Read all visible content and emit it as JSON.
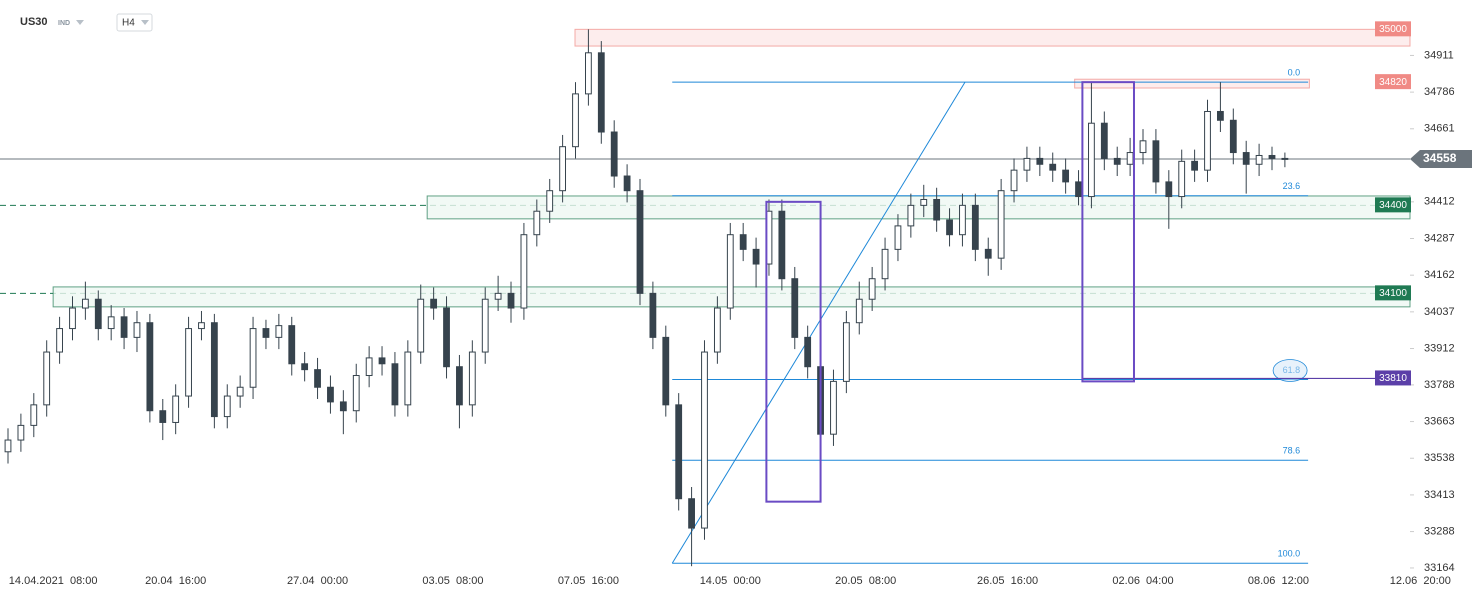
{
  "header": {
    "symbol": "US30",
    "market": "IND",
    "timeframe": "H4"
  },
  "chart_data": {
    "type": "candlestick",
    "color": "#36434d",
    "candles": {
      "open": [
        33560,
        33600,
        33650,
        33720,
        33900,
        33980,
        34050,
        34080,
        33980,
        34020,
        33950,
        34000,
        33700,
        33660,
        33750,
        33980,
        34000,
        33680,
        33750,
        33780,
        33980,
        33950,
        33990,
        33860,
        33840,
        33780,
        33730,
        33700,
        33820,
        33880,
        33860,
        33720,
        33900,
        34080,
        34050,
        33850,
        33720,
        33900,
        34080,
        34100,
        34050,
        34300,
        34380,
        34450,
        34600,
        34780,
        34920,
        34650,
        34500,
        34450,
        34100,
        33950,
        33720,
        33400,
        33300,
        33900,
        34050,
        34300,
        34250,
        34200,
        34380,
        34150,
        33950,
        33850,
        33620,
        33800,
        34000,
        34080,
        34150,
        34250,
        34330,
        34400,
        34420,
        34350,
        34300,
        34400,
        34250,
        34220,
        34450,
        34520,
        34560,
        34540,
        34520,
        34480,
        34430,
        34680,
        34560,
        34540,
        34580,
        34620,
        34480,
        34430,
        34550,
        34520,
        34720,
        34690,
        34580,
        34540,
        34570,
        34560
      ],
      "high": [
        33640,
        33690,
        33760,
        33940,
        34020,
        34090,
        34140,
        34110,
        34060,
        34050,
        34040,
        34030,
        33740,
        33790,
        34020,
        34040,
        34030,
        33790,
        33820,
        34020,
        34010,
        34030,
        34020,
        33900,
        33880,
        33820,
        33770,
        33860,
        33920,
        33920,
        33900,
        33940,
        34130,
        34120,
        34090,
        33890,
        33940,
        34120,
        34160,
        34140,
        34340,
        34420,
        34490,
        34640,
        34820,
        35000,
        34960,
        34690,
        34540,
        34490,
        34140,
        33990,
        33760,
        33440,
        33940,
        34090,
        34340,
        34340,
        34290,
        34420,
        34420,
        34190,
        33990,
        33890,
        33840,
        34040,
        34140,
        34190,
        34290,
        34370,
        34440,
        34470,
        34460,
        34390,
        34440,
        34440,
        34290,
        34490,
        34560,
        34600,
        34600,
        34580,
        34560,
        34520,
        34820,
        34720,
        34600,
        34630,
        34660,
        34660,
        34520,
        34590,
        34590,
        34760,
        34820,
        34730,
        34620,
        34610,
        34600,
        34580
      ],
      "low": [
        33520,
        33560,
        33610,
        33680,
        33860,
        33940,
        34010,
        33940,
        33940,
        33910,
        33900,
        33660,
        33600,
        33620,
        33710,
        33940,
        33640,
        33640,
        33710,
        33740,
        33910,
        33910,
        33820,
        33800,
        33740,
        33690,
        33620,
        33660,
        33780,
        33820,
        33680,
        33680,
        33860,
        34010,
        33810,
        33640,
        33680,
        33860,
        34040,
        34000,
        34010,
        34260,
        34340,
        34410,
        34560,
        34740,
        34610,
        34460,
        34410,
        34060,
        33910,
        33680,
        33360,
        33170,
        33260,
        33860,
        34010,
        34210,
        34120,
        34160,
        34110,
        33910,
        33810,
        33540,
        33580,
        33760,
        33960,
        34040,
        34110,
        34210,
        34290,
        34360,
        34310,
        34260,
        34260,
        34210,
        34160,
        34180,
        34410,
        34480,
        34500,
        34480,
        34440,
        34400,
        34390,
        34520,
        34500,
        34500,
        34540,
        34440,
        34320,
        34390,
        34480,
        34480,
        34650,
        34540,
        34440,
        34500,
        34520,
        34530
      ],
      "close": [
        33600,
        33650,
        33720,
        33900,
        33980,
        34050,
        34080,
        33980,
        34020,
        33950,
        34000,
        33700,
        33660,
        33750,
        33980,
        34000,
        33680,
        33750,
        33780,
        33980,
        33950,
        33990,
        33860,
        33840,
        33780,
        33730,
        33700,
        33820,
        33880,
        33860,
        33720,
        33900,
        34080,
        34050,
        33850,
        33720,
        33900,
        34080,
        34100,
        34050,
        34300,
        34380,
        34450,
        34600,
        34780,
        34920,
        34650,
        34500,
        34450,
        34100,
        33950,
        33720,
        33400,
        33300,
        33900,
        34050,
        34300,
        34250,
        34200,
        34380,
        34150,
        33950,
        33850,
        33620,
        33800,
        34000,
        34080,
        34150,
        34250,
        34330,
        34400,
        34420,
        34350,
        34300,
        34400,
        34250,
        34220,
        34450,
        34520,
        34560,
        34540,
        34520,
        34480,
        34430,
        34680,
        34560,
        34540,
        34580,
        34620,
        34480,
        34430,
        34550,
        34520,
        34720,
        34690,
        34580,
        34540,
        34570,
        34560,
        34558
      ]
    },
    "xlim": [
      -0.62,
      108.7
    ],
    "xticks": [
      {
        "value": 3.5,
        "label": "14.04.2021  08:00"
      },
      {
        "value": 13,
        "label": "20.04  16:00"
      },
      {
        "value": 24,
        "label": "27.04  00:00"
      },
      {
        "value": 34.5,
        "label": "03.05  08:00"
      },
      {
        "value": 45,
        "label": "07.05  16:00"
      },
      {
        "value": 56,
        "label": "14.05  00:00"
      },
      {
        "value": 66.5,
        "label": "20.05  08:00"
      },
      {
        "value": 77.5,
        "label": "26.05  16:00"
      },
      {
        "value": 88,
        "label": "02.06  04:00"
      },
      {
        "value": 98.5,
        "label": "08.06  12:00"
      },
      {
        "value": 109.5,
        "label": "12.06  20:00"
      }
    ],
    "ylim": [
      33140,
      35100
    ],
    "yticks": [
      34911,
      34786,
      34661,
      34412,
      34287,
      34162,
      34037,
      33912,
      33788,
      33663,
      33538,
      33413,
      33288,
      33164
    ],
    "last_price": 34558,
    "zones": [
      {
        "level": 35000,
        "top": 35000,
        "bottom": 34943,
        "x": [
          43.96,
          108.7
        ],
        "color": "#f08a85",
        "fill": "#fde8e8",
        "dashed": false
      },
      {
        "level": 34820,
        "top": 34830,
        "bottom": 34800,
        "x": [
          82.7,
          100.9
        ],
        "color": "#f08a85",
        "fill": "#fde8e8",
        "dashed": false
      },
      {
        "level": 34400,
        "top": 34432,
        "bottom": 34354,
        "x": [
          32.5,
          108.7
        ],
        "color": "#1f7a53",
        "fill": "#eef8f3",
        "dashed": true
      },
      {
        "level": 34100,
        "top": 34122,
        "bottom": 34054,
        "x": [
          3.5,
          108.7
        ],
        "color": "#1f7a53",
        "fill": "#eef8f3",
        "dashed": true
      }
    ],
    "lines": [
      {
        "level": 33810,
        "x": [
          83.3,
          106
        ],
        "color": "#5b3fa8"
      }
    ],
    "boxes": [
      {
        "x": [
          58.8,
          63
        ],
        "y": [
          34412,
          33390
        ],
        "color": "#6a4bc4"
      },
      {
        "x": [
          83.3,
          87.3
        ],
        "y": [
          34820,
          33800
        ],
        "color": "#6a4bc4"
      }
    ],
    "trendline": {
      "x": [
        51.5,
        74.2
      ],
      "y": [
        33180,
        34820
      ],
      "color": "#1e88d8"
    },
    "fib": {
      "high": 34820,
      "low": 33180,
      "x": [
        51.5,
        100.8
      ],
      "color": "#1e88d8",
      "levels": [
        {
          "value": 0,
          "label": "0.0"
        },
        23.6,
        61.8,
        78.6,
        {
          "value": 100,
          "label": "100.0"
        }
      ]
    }
  }
}
